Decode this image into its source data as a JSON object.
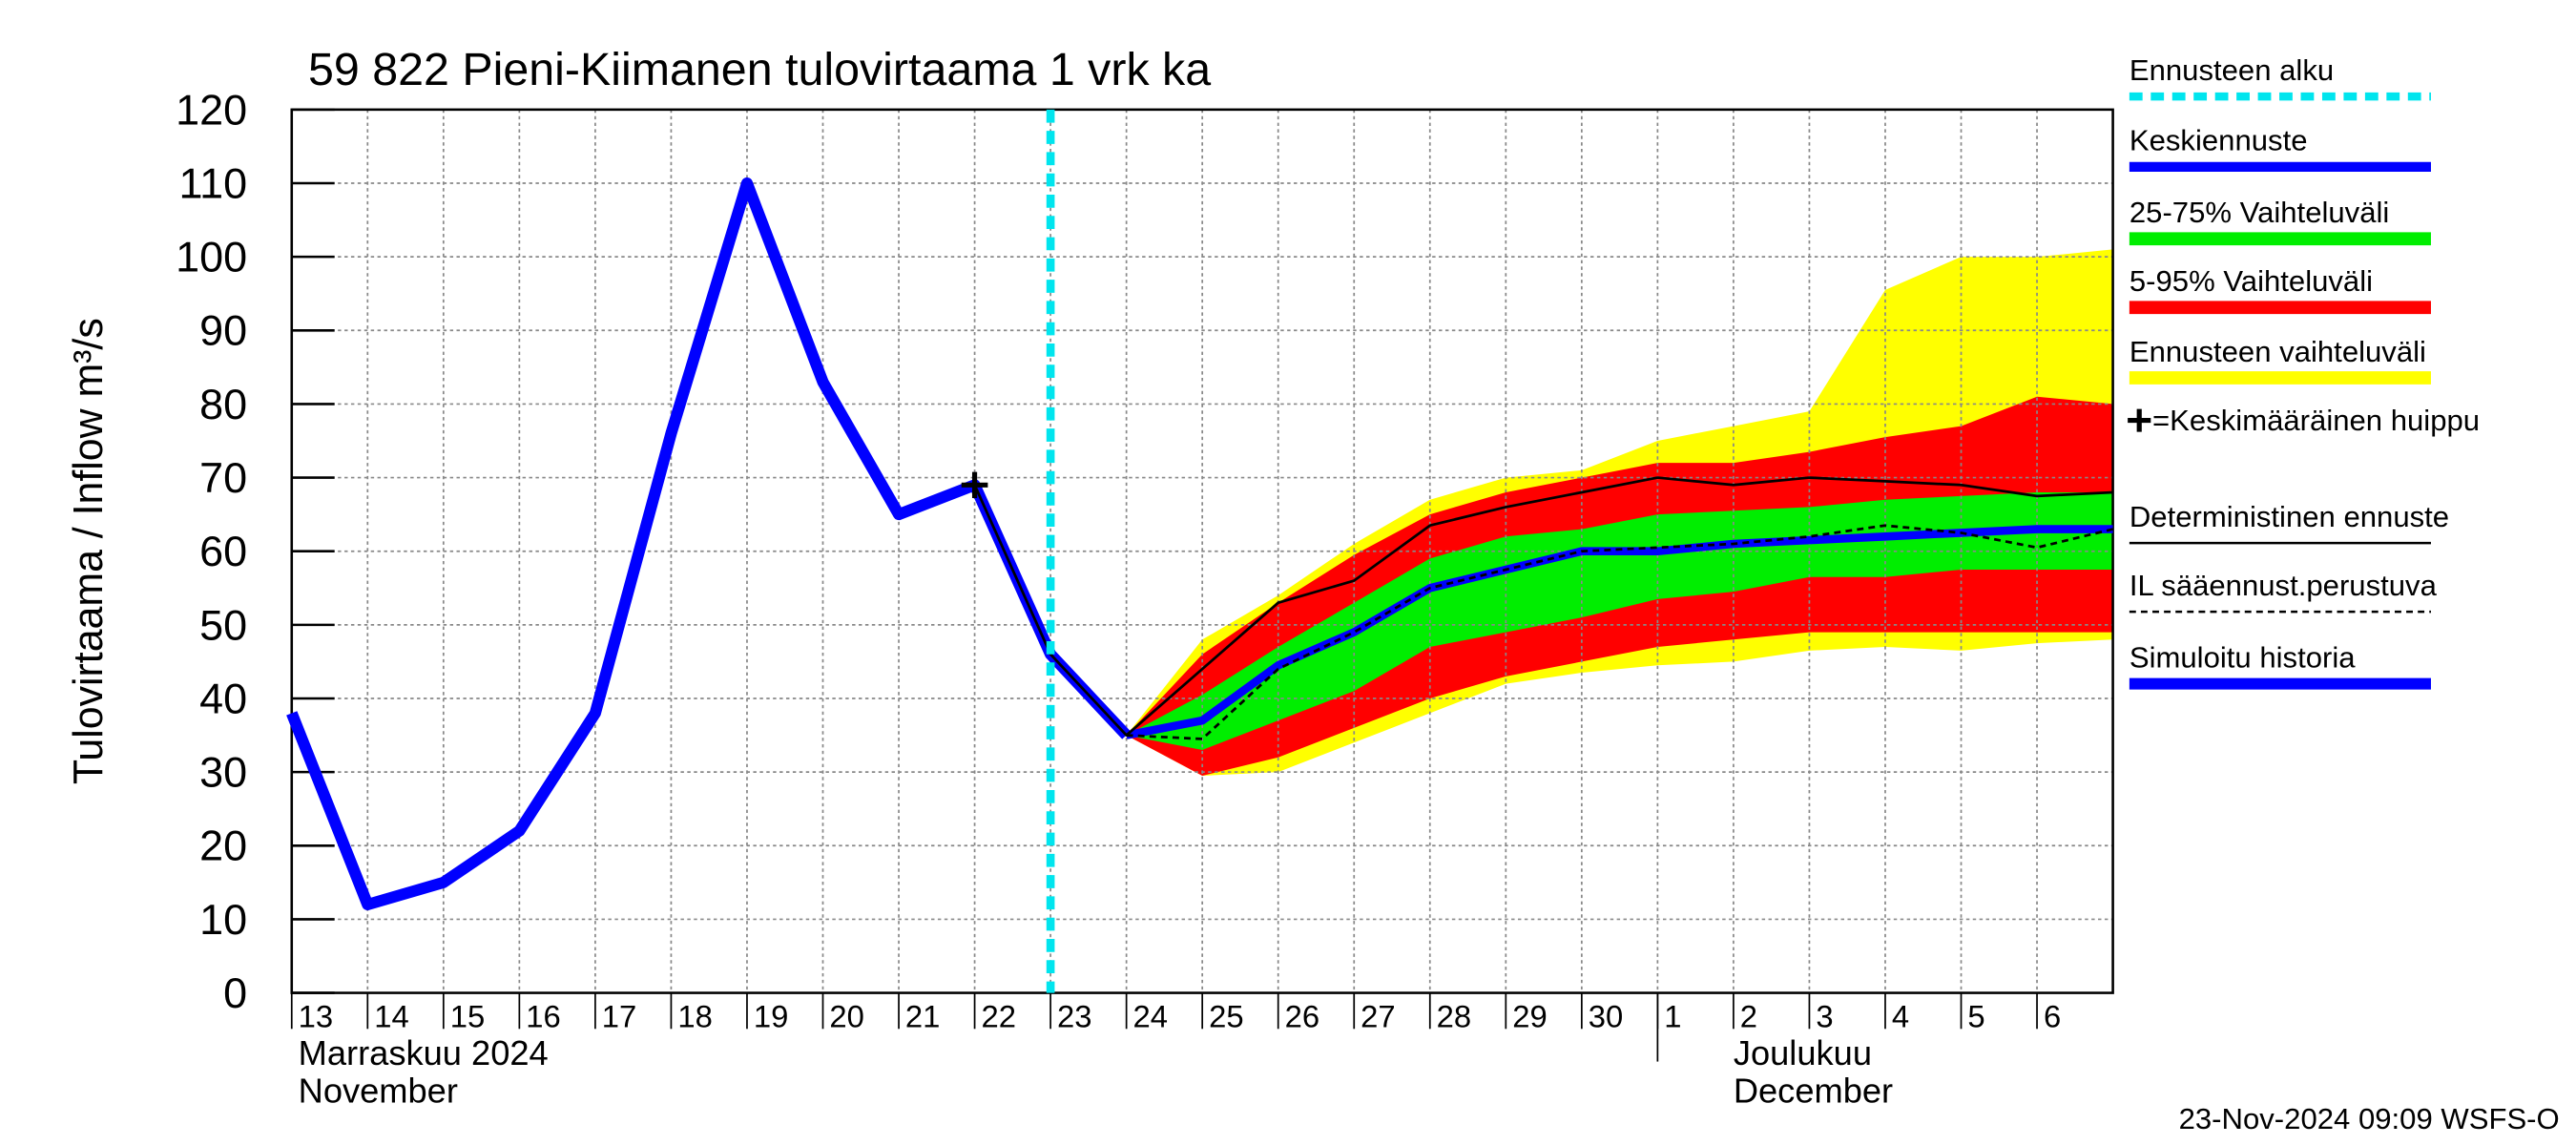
{
  "chart_data": {
    "type": "line",
    "title": "59 822 Pieni-Kiimanen tulovirtaama 1 vrk ka",
    "y_label": "Tulovirtaama / Inflow   m³/s",
    "month_labels": [
      {
        "x": "2024-11-13",
        "lines": [
          "Marraskuu 2024",
          "November"
        ]
      },
      {
        "x": "2024-12-01",
        "lines": [
          "Joulukuu",
          "December"
        ]
      }
    ],
    "footer": "23-Nov-2024 09:09 WSFS-O",
    "x": [
      "2024-11-13",
      "2024-11-14",
      "2024-11-15",
      "2024-11-16",
      "2024-11-17",
      "2024-11-18",
      "2024-11-19",
      "2024-11-20",
      "2024-11-21",
      "2024-11-22",
      "2024-11-23",
      "2024-11-24",
      "2024-11-25",
      "2024-11-26",
      "2024-11-27",
      "2024-11-28",
      "2024-11-29",
      "2024-11-30",
      "2024-12-01",
      "2024-12-02",
      "2024-12-03",
      "2024-12-04",
      "2024-12-05",
      "2024-12-06",
      "2024-12-07"
    ],
    "xlim": [
      "2024-11-13",
      "2024-12-07"
    ],
    "xticks": [
      {
        "value": "2024-11-13",
        "label": "13"
      },
      {
        "value": "2024-11-14",
        "label": "14"
      },
      {
        "value": "2024-11-15",
        "label": "15"
      },
      {
        "value": "2024-11-16",
        "label": "16"
      },
      {
        "value": "2024-11-17",
        "label": "17"
      },
      {
        "value": "2024-11-18",
        "label": "18"
      },
      {
        "value": "2024-11-19",
        "label": "19"
      },
      {
        "value": "2024-11-20",
        "label": "20"
      },
      {
        "value": "2024-11-21",
        "label": "21"
      },
      {
        "value": "2024-11-22",
        "label": "22"
      },
      {
        "value": "2024-11-23",
        "label": "23"
      },
      {
        "value": "2024-11-24",
        "label": "24"
      },
      {
        "value": "2024-11-25",
        "label": "25"
      },
      {
        "value": "2024-11-26",
        "label": "26"
      },
      {
        "value": "2024-11-27",
        "label": "27"
      },
      {
        "value": "2024-11-28",
        "label": "28"
      },
      {
        "value": "2024-11-29",
        "label": "29"
      },
      {
        "value": "2024-11-30",
        "label": "30"
      },
      {
        "value": "2024-12-01",
        "label": "1"
      },
      {
        "value": "2024-12-02",
        "label": "2"
      },
      {
        "value": "2024-12-03",
        "label": "3"
      },
      {
        "value": "2024-12-04",
        "label": "4"
      },
      {
        "value": "2024-12-05",
        "label": "5"
      },
      {
        "value": "2024-12-06",
        "label": "6"
      }
    ],
    "ylim": [
      0,
      120
    ],
    "yticks": [
      0,
      10,
      20,
      30,
      40,
      50,
      60,
      70,
      80,
      90,
      100,
      110,
      120
    ],
    "grid": true,
    "forecast_start": {
      "name": "Ennusteen alku",
      "x": "2024-11-23",
      "color": "#00e5ee"
    },
    "peak": {
      "name": "=Keskimääräinen huippu",
      "x": "2024-11-22",
      "value": 69,
      "color": "#000000"
    },
    "bands": [
      {
        "name": "Ennusteen vaihteluväli",
        "color": "#ffff00",
        "lower": [
          null,
          null,
          null,
          null,
          null,
          null,
          null,
          null,
          null,
          null,
          null,
          35,
          29.5,
          30,
          34,
          38,
          42,
          43.5,
          44.5,
          45,
          46.5,
          47,
          46.5,
          47.5,
          48
        ],
        "upper": [
          null,
          null,
          null,
          null,
          null,
          null,
          null,
          null,
          null,
          null,
          null,
          35,
          48,
          54,
          61,
          67,
          70,
          71,
          75,
          77,
          79,
          95.5,
          100,
          100,
          101
        ]
      },
      {
        "name": "5-95% Vaihteluväli",
        "color": "#ff0000",
        "lower": [
          null,
          null,
          null,
          null,
          null,
          null,
          null,
          null,
          null,
          null,
          null,
          35,
          29.5,
          32,
          36,
          40,
          43,
          45,
          47,
          48,
          49,
          49,
          49,
          49,
          49
        ],
        "upper": [
          null,
          null,
          null,
          null,
          null,
          null,
          null,
          null,
          null,
          null,
          null,
          35,
          46,
          53,
          59.5,
          65,
          68,
          70,
          72,
          72,
          73.5,
          75.5,
          77,
          81,
          80
        ]
      },
      {
        "name": "25-75% Vaihteluväli",
        "color": "#00ee00",
        "lower": [
          null,
          null,
          null,
          null,
          null,
          null,
          null,
          null,
          null,
          null,
          null,
          35,
          33,
          37,
          41,
          47,
          49,
          51,
          53.5,
          54.5,
          56.5,
          56.5,
          57.5,
          57.5,
          57.5
        ],
        "upper": [
          null,
          null,
          null,
          null,
          null,
          null,
          null,
          null,
          null,
          null,
          null,
          35,
          40.5,
          47,
          53,
          59,
          62,
          63,
          65,
          65.5,
          66,
          67,
          67.5,
          68,
          68
        ]
      }
    ],
    "series": [
      {
        "name": "Simuloitu historia",
        "color": "#0000ff",
        "values": [
          38,
          12,
          15,
          22,
          38,
          76,
          110,
          83,
          65,
          69,
          46,
          35,
          null,
          null,
          null,
          null,
          null,
          null,
          null,
          null,
          null,
          null,
          null,
          null,
          null
        ]
      },
      {
        "name": "Keskiennuste",
        "color": "#0000ff",
        "values": [
          null,
          null,
          null,
          null,
          null,
          null,
          null,
          null,
          null,
          null,
          null,
          35,
          37,
          44.5,
          49,
          55,
          57.5,
          60,
          60,
          61,
          61.5,
          62,
          62.5,
          63,
          63
        ]
      },
      {
        "name": "Deterministinen ennuste",
        "color": "#000000",
        "values": [
          null,
          null,
          null,
          null,
          null,
          null,
          null,
          null,
          null,
          69,
          46,
          35,
          44,
          53,
          56,
          63.5,
          66,
          68,
          70,
          69,
          70,
          69.5,
          69,
          67.5,
          68
        ]
      },
      {
        "name": "IL sääennust.perustuva",
        "color": "#000000",
        "values": [
          null,
          null,
          null,
          null,
          null,
          null,
          null,
          null,
          null,
          null,
          null,
          35,
          34.5,
          44,
          49,
          55,
          57.5,
          60,
          60.5,
          61,
          62,
          63.5,
          62.5,
          60.5,
          63
        ]
      }
    ]
  }
}
